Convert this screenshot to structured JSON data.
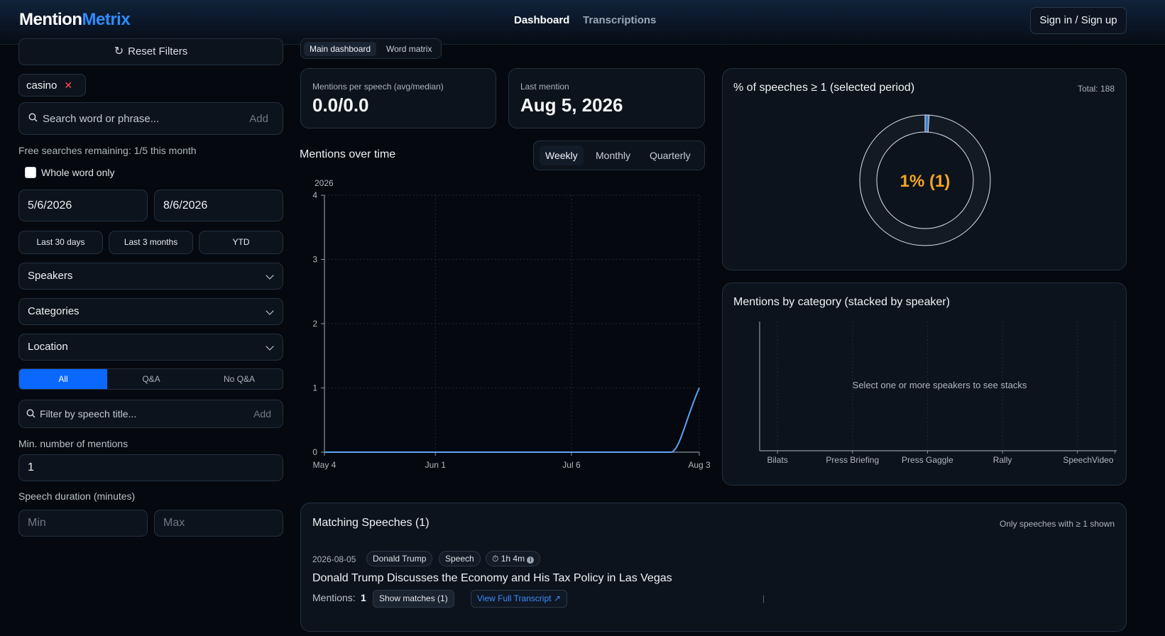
{
  "header": {
    "logo_part1": "Mention",
    "logo_part2": "Metrix",
    "nav": [
      "Dashboard",
      "Transcriptions"
    ],
    "signin": "Sign in / Sign up"
  },
  "sidebar": {
    "reset_label": "Reset Filters",
    "chip": "casino",
    "search_placeholder": "Search word or phrase...",
    "search_add": "Add",
    "free_searches": "Free searches remaining: 1/5 this month",
    "whole_word_label": "Whole word only",
    "whole_word_checked": false,
    "date_from": "5/6/2026",
    "date_to": "8/6/2026",
    "presets": [
      "Last 30 days",
      "Last 3 months",
      "YTD"
    ],
    "dropdowns": [
      "Speakers",
      "Categories",
      "Location"
    ],
    "qa_options": [
      "All",
      "Q&A",
      "No Q&A"
    ],
    "qa_selected": "All",
    "title_filter_placeholder": "Filter by speech title...",
    "title_filter_add": "Add",
    "min_mentions_label": "Min. number of mentions",
    "min_mentions_value": "1",
    "duration_label": "Speech duration (minutes)",
    "duration_min_placeholder": "Min",
    "duration_max_placeholder": "Max"
  },
  "main": {
    "tabs": [
      "Main dashboard",
      "Word matrix"
    ],
    "active_tab": "Main dashboard",
    "stats": {
      "mentions_label": "Mentions per speech (avg/median)",
      "mentions_value": "0.0/0.0",
      "last_label": "Last mention",
      "last_value": "Aug 5, 2026"
    },
    "mentions_title": "Mentions over time",
    "periods": [
      "Weekly",
      "Monthly",
      "Quarterly"
    ],
    "active_period": "Weekly",
    "year_label": "2026"
  },
  "donut": {
    "title": "% of speeches ≥ 1 (selected period)",
    "total": "Total: 188",
    "center_label": "1% (1)",
    "percent": 1,
    "accent": "#f5a524"
  },
  "category": {
    "title": "Mentions by category (stacked by speaker)",
    "empty_message": "Select one or more speakers to see stacks"
  },
  "speeches": {
    "title": "Matching Speeches (1)",
    "note": "Only speeches with ≥ 1 shown",
    "items": [
      {
        "date": "2026-08-05",
        "speaker": "Donald Trump",
        "category": "Speech",
        "duration": "1h 4m",
        "title": "Donald Trump Discusses the Economy and His Tax Policy in Las Vegas",
        "mentions_label": "Mentions:",
        "mentions": "1",
        "show_matches": "Show matches (1)",
        "separator": "|",
        "view_transcript": "View Full Transcript"
      }
    ]
  },
  "chart_data": [
    {
      "type": "line",
      "title": "Mentions over time",
      "x_ticks": [
        "May 4",
        "Jun 1",
        "Jul 6",
        "Aug 3"
      ],
      "x": [
        "May 4",
        "Aug 3"
      ],
      "y": [
        0,
        1
      ],
      "ylim": [
        0,
        4
      ],
      "y_ticks": [
        0,
        1,
        2,
        3,
        4
      ],
      "grid": true,
      "color": "#5ba4f5"
    },
    {
      "type": "bar",
      "title": "Mentions by category (stacked by speaker)",
      "categories": [
        "Bilats",
        "Press Briefing",
        "Press Gaggle",
        "Rally",
        "Speech",
        "Video"
      ],
      "series": [],
      "grid": true
    }
  ]
}
